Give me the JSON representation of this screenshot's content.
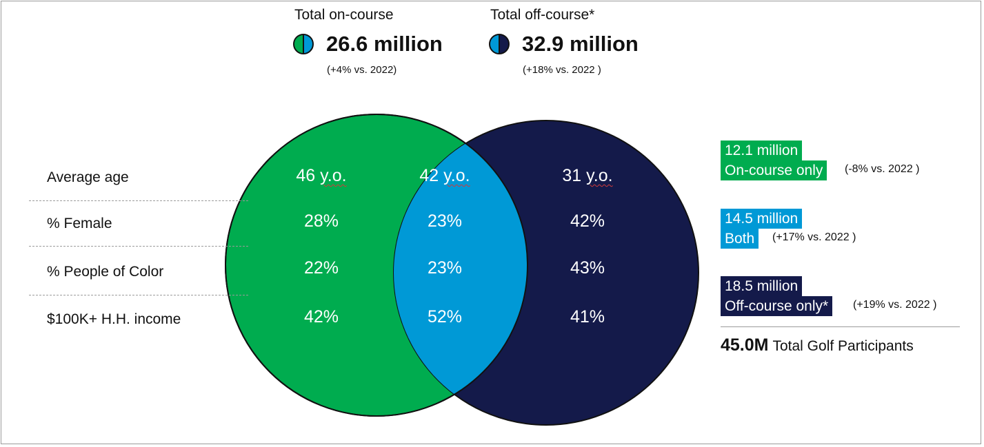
{
  "colors": {
    "green": "#00ac4f",
    "navy": "#141a4a",
    "blue": "#0099d6"
  },
  "totals": {
    "on_course": {
      "label": "Total on-course",
      "value": "26.6 million",
      "change": "(+4% vs. 2022)",
      "icon": "half-green-half-blue-circle-icon"
    },
    "off_course": {
      "label": "Total off-course*",
      "value": "32.9 million",
      "change": "(+18% vs. 2022 )",
      "icon": "half-blue-half-navy-circle-icon"
    }
  },
  "row_labels": [
    "Average age",
    "% Female",
    "% People of Color",
    "$100K+ H.H. income"
  ],
  "columns": {
    "on_course_only": {
      "age_num": "46",
      "female": "28%",
      "poc": "22%",
      "income": "42%"
    },
    "both": {
      "age_num": "42",
      "female": "23%",
      "poc": "23%",
      "income": "52%"
    },
    "off_course_only": {
      "age_num": "31",
      "female": "42%",
      "poc": "43%",
      "income": "41%"
    }
  },
  "age_unit": "y.o.",
  "segments": {
    "on_only": {
      "value": "12.1 million",
      "label": "On-course only",
      "change": "(-8% vs. 2022 )"
    },
    "both": {
      "value": "14.5 million",
      "label": "Both",
      "change": "(+17% vs. 2022 )"
    },
    "off_only": {
      "value": "18.5 million",
      "label": "Off-course only*",
      "change": "(+19% vs. 2022 )"
    }
  },
  "grand_total": {
    "value": "45.0M",
    "label": "Total Golf Participants"
  }
}
